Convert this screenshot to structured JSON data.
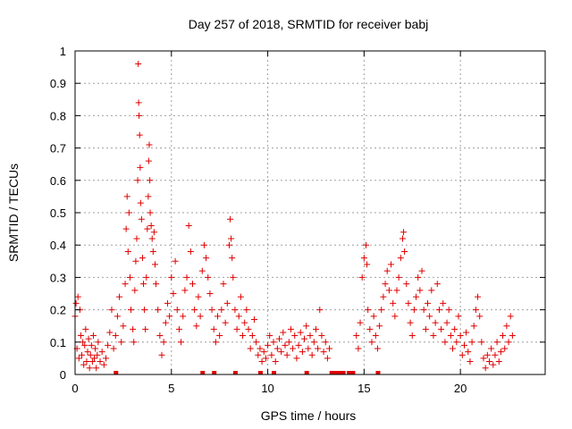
{
  "chart_data": {
    "type": "scatter",
    "title": "Day 257 of 2018, SRMTID for receiver babj",
    "xlabel": "GPS time / hours",
    "ylabel": "SRMTID / TECUs",
    "xlim": [
      0,
      24.4
    ],
    "ylim": [
      0,
      1
    ],
    "xticks": [
      0,
      5,
      10,
      15,
      20
    ],
    "xtick_labels": [
      "0",
      "5",
      "10",
      "15",
      "20"
    ],
    "yticks": [
      0,
      0.1,
      0.2,
      0.3,
      0.4,
      0.5,
      0.6,
      0.7,
      0.8,
      0.9,
      1
    ],
    "ytick_labels": [
      "0",
      "0.1",
      "0.2",
      "0.3",
      "0.4",
      "0.5",
      "0.6",
      "0.7",
      "0.8",
      "0.9",
      "1"
    ],
    "grid": true,
    "marker": "+",
    "color": "#e00000",
    "series": [
      {
        "name": "SRMTID",
        "points": [
          [
            0.0,
            0.18
          ],
          [
            0.05,
            0.22
          ],
          [
            0.1,
            0.08
          ],
          [
            0.15,
            0.24
          ],
          [
            0.2,
            0.05
          ],
          [
            0.25,
            0.2
          ],
          [
            0.3,
            0.12
          ],
          [
            0.35,
            0.06
          ],
          [
            0.4,
            0.1
          ],
          [
            0.45,
            0.03
          ],
          [
            0.5,
            0.09
          ],
          [
            0.55,
            0.14
          ],
          [
            0.6,
            0.04
          ],
          [
            0.65,
            0.07
          ],
          [
            0.7,
            0.11
          ],
          [
            0.75,
            0.02
          ],
          [
            0.8,
            0.06
          ],
          [
            0.85,
            0.09
          ],
          [
            0.9,
            0.04
          ],
          [
            0.95,
            0.12
          ],
          [
            1.0,
            0.05
          ],
          [
            1.05,
            0.08
          ],
          [
            1.1,
            0.02
          ],
          [
            1.15,
            0.06
          ],
          [
            1.2,
            0.1
          ],
          [
            1.3,
            0.04
          ],
          [
            1.4,
            0.07
          ],
          [
            1.5,
            0.03
          ],
          [
            1.6,
            0.05
          ],
          [
            1.7,
            0.09
          ],
          [
            1.8,
            0.13
          ],
          [
            1.9,
            0.2
          ],
          [
            2.0,
            0.08
          ],
          [
            2.1,
            0.12
          ],
          [
            2.2,
            0.18
          ],
          [
            2.3,
            0.24
          ],
          [
            2.4,
            0.1
          ],
          [
            2.5,
            0.15
          ],
          [
            2.6,
            0.28
          ],
          [
            2.65,
            0.45
          ],
          [
            2.7,
            0.55
          ],
          [
            2.75,
            0.38
          ],
          [
            2.8,
            0.5
          ],
          [
            2.85,
            0.3
          ],
          [
            2.9,
            0.2
          ],
          [
            3.0,
            0.14
          ],
          [
            3.05,
            0.1
          ],
          [
            3.1,
            0.26
          ],
          [
            3.15,
            0.35
          ],
          [
            3.2,
            0.42
          ],
          [
            3.25,
            0.6
          ],
          [
            3.28,
            0.96
          ],
          [
            3.3,
            0.84
          ],
          [
            3.32,
            0.8
          ],
          [
            3.35,
            0.74
          ],
          [
            3.38,
            0.64
          ],
          [
            3.4,
            0.53
          ],
          [
            3.45,
            0.48
          ],
          [
            3.5,
            0.36
          ],
          [
            3.55,
            0.28
          ],
          [
            3.6,
            0.2
          ],
          [
            3.65,
            0.14
          ],
          [
            3.7,
            0.3
          ],
          [
            3.75,
            0.45
          ],
          [
            3.8,
            0.55
          ],
          [
            3.82,
            0.66
          ],
          [
            3.85,
            0.71
          ],
          [
            3.88,
            0.6
          ],
          [
            3.9,
            0.5
          ],
          [
            3.95,
            0.46
          ],
          [
            4.0,
            0.42
          ],
          [
            4.05,
            0.38
          ],
          [
            4.1,
            0.44
          ],
          [
            4.15,
            0.34
          ],
          [
            4.2,
            0.28
          ],
          [
            4.3,
            0.2
          ],
          [
            4.4,
            0.12
          ],
          [
            4.5,
            0.06
          ],
          [
            4.6,
            0.1
          ],
          [
            4.7,
            0.16
          ],
          [
            4.8,
            0.22
          ],
          [
            4.9,
            0.18
          ],
          [
            5.0,
            0.3
          ],
          [
            5.1,
            0.25
          ],
          [
            5.2,
            0.35
          ],
          [
            5.3,
            0.2
          ],
          [
            5.4,
            0.14
          ],
          [
            5.5,
            0.1
          ],
          [
            5.6,
            0.18
          ],
          [
            5.7,
            0.26
          ],
          [
            5.8,
            0.3
          ],
          [
            5.9,
            0.46
          ],
          [
            6.0,
            0.38
          ],
          [
            6.1,
            0.28
          ],
          [
            6.2,
            0.2
          ],
          [
            6.3,
            0.15
          ],
          [
            6.4,
            0.24
          ],
          [
            6.5,
            0.18
          ],
          [
            6.6,
            0.32
          ],
          [
            6.7,
            0.4
          ],
          [
            6.8,
            0.36
          ],
          [
            6.9,
            0.3
          ],
          [
            7.0,
            0.25
          ],
          [
            7.1,
            0.2
          ],
          [
            7.2,
            0.14
          ],
          [
            7.3,
            0.1
          ],
          [
            7.4,
            0.18
          ],
          [
            7.5,
            0.12
          ],
          [
            7.6,
            0.2
          ],
          [
            7.7,
            0.28
          ],
          [
            7.8,
            0.16
          ],
          [
            7.9,
            0.22
          ],
          [
            8.0,
            0.4
          ],
          [
            8.05,
            0.48
          ],
          [
            8.1,
            0.42
          ],
          [
            8.15,
            0.36
          ],
          [
            8.2,
            0.3
          ],
          [
            8.3,
            0.2
          ],
          [
            8.4,
            0.14
          ],
          [
            8.5,
            0.18
          ],
          [
            8.6,
            0.24
          ],
          [
            8.7,
            0.12
          ],
          [
            8.8,
            0.16
          ],
          [
            8.9,
            0.2
          ],
          [
            9.0,
            0.14
          ],
          [
            9.1,
            0.08
          ],
          [
            9.2,
            0.12
          ],
          [
            9.3,
            0.17
          ],
          [
            9.4,
            0.1
          ],
          [
            9.5,
            0.06
          ],
          [
            9.6,
            0.08
          ],
          [
            9.7,
            0.04
          ],
          [
            9.8,
            0.07
          ],
          [
            9.9,
            0.05
          ],
          [
            10.0,
            0.09
          ],
          [
            10.1,
            0.12
          ],
          [
            10.2,
            0.06
          ],
          [
            10.3,
            0.1
          ],
          [
            10.4,
            0.04
          ],
          [
            10.5,
            0.08
          ],
          [
            10.6,
            0.11
          ],
          [
            10.7,
            0.07
          ],
          [
            10.8,
            0.13
          ],
          [
            10.9,
            0.09
          ],
          [
            11.0,
            0.06
          ],
          [
            11.1,
            0.1
          ],
          [
            11.2,
            0.14
          ],
          [
            11.3,
            0.08
          ],
          [
            11.4,
            0.12
          ],
          [
            11.5,
            0.05
          ],
          [
            11.6,
            0.09
          ],
          [
            11.7,
            0.13
          ],
          [
            11.8,
            0.07
          ],
          [
            11.9,
            0.11
          ],
          [
            12.0,
            0.15
          ],
          [
            12.1,
            0.08
          ],
          [
            12.2,
            0.12
          ],
          [
            12.3,
            0.06
          ],
          [
            12.4,
            0.1
          ],
          [
            12.5,
            0.14
          ],
          [
            12.6,
            0.08
          ],
          [
            12.7,
            0.2
          ],
          [
            12.8,
            0.12
          ],
          [
            12.9,
            0.07
          ],
          [
            13.0,
            0.1
          ],
          [
            13.1,
            0.05
          ],
          [
            13.2,
            0.08
          ],
          [
            14.6,
            0.12
          ],
          [
            14.7,
            0.08
          ],
          [
            14.8,
            0.16
          ],
          [
            14.9,
            0.3
          ],
          [
            15.0,
            0.36
          ],
          [
            15.1,
            0.4
          ],
          [
            15.15,
            0.34
          ],
          [
            15.2,
            0.2
          ],
          [
            15.3,
            0.14
          ],
          [
            15.4,
            0.1
          ],
          [
            15.5,
            0.18
          ],
          [
            15.6,
            0.12
          ],
          [
            15.7,
            0.08
          ],
          [
            15.8,
            0.15
          ],
          [
            15.9,
            0.2
          ],
          [
            16.0,
            0.24
          ],
          [
            16.1,
            0.28
          ],
          [
            16.2,
            0.32
          ],
          [
            16.3,
            0.26
          ],
          [
            16.4,
            0.34
          ],
          [
            16.5,
            0.22
          ],
          [
            16.6,
            0.18
          ],
          [
            16.7,
            0.26
          ],
          [
            16.8,
            0.3
          ],
          [
            16.9,
            0.36
          ],
          [
            17.0,
            0.42
          ],
          [
            17.05,
            0.44
          ],
          [
            17.1,
            0.38
          ],
          [
            17.2,
            0.28
          ],
          [
            17.3,
            0.22
          ],
          [
            17.4,
            0.16
          ],
          [
            17.5,
            0.12
          ],
          [
            17.6,
            0.2
          ],
          [
            17.7,
            0.24
          ],
          [
            17.8,
            0.3
          ],
          [
            17.9,
            0.26
          ],
          [
            18.0,
            0.32
          ],
          [
            18.1,
            0.2
          ],
          [
            18.2,
            0.14
          ],
          [
            18.3,
            0.22
          ],
          [
            18.4,
            0.18
          ],
          [
            18.5,
            0.26
          ],
          [
            18.6,
            0.12
          ],
          [
            18.7,
            0.16
          ],
          [
            18.8,
            0.28
          ],
          [
            18.9,
            0.2
          ],
          [
            19.0,
            0.14
          ],
          [
            19.1,
            0.22
          ],
          [
            19.2,
            0.1
          ],
          [
            19.3,
            0.16
          ],
          [
            19.4,
            0.2
          ],
          [
            19.5,
            0.12
          ],
          [
            19.6,
            0.08
          ],
          [
            19.7,
            0.14
          ],
          [
            19.8,
            0.1
          ],
          [
            19.9,
            0.18
          ],
          [
            20.0,
            0.12
          ],
          [
            20.1,
            0.06
          ],
          [
            20.2,
            0.09
          ],
          [
            20.3,
            0.13
          ],
          [
            20.4,
            0.07
          ],
          [
            20.5,
            0.04
          ],
          [
            20.6,
            0.1
          ],
          [
            20.7,
            0.15
          ],
          [
            20.8,
            0.2
          ],
          [
            20.9,
            0.24
          ],
          [
            21.0,
            0.18
          ],
          [
            21.1,
            0.1
          ],
          [
            21.2,
            0.05
          ],
          [
            21.3,
            0.02
          ],
          [
            21.4,
            0.06
          ],
          [
            21.5,
            0.04
          ],
          [
            21.6,
            0.08
          ],
          [
            21.7,
            0.03
          ],
          [
            21.8,
            0.06
          ],
          [
            21.9,
            0.1
          ],
          [
            22.0,
            0.04
          ],
          [
            22.1,
            0.07
          ],
          [
            22.2,
            0.12
          ],
          [
            22.3,
            0.08
          ],
          [
            22.4,
            0.15
          ],
          [
            22.5,
            0.1
          ],
          [
            22.6,
            0.18
          ],
          [
            22.7,
            0.12
          ]
        ],
        "zero_markers": [
          2.1,
          6.6,
          7.2,
          8.3,
          9.6,
          10.3,
          12.0,
          13.3,
          13.5,
          13.7,
          13.9,
          14.2,
          14.4,
          15.7
        ]
      }
    ]
  }
}
